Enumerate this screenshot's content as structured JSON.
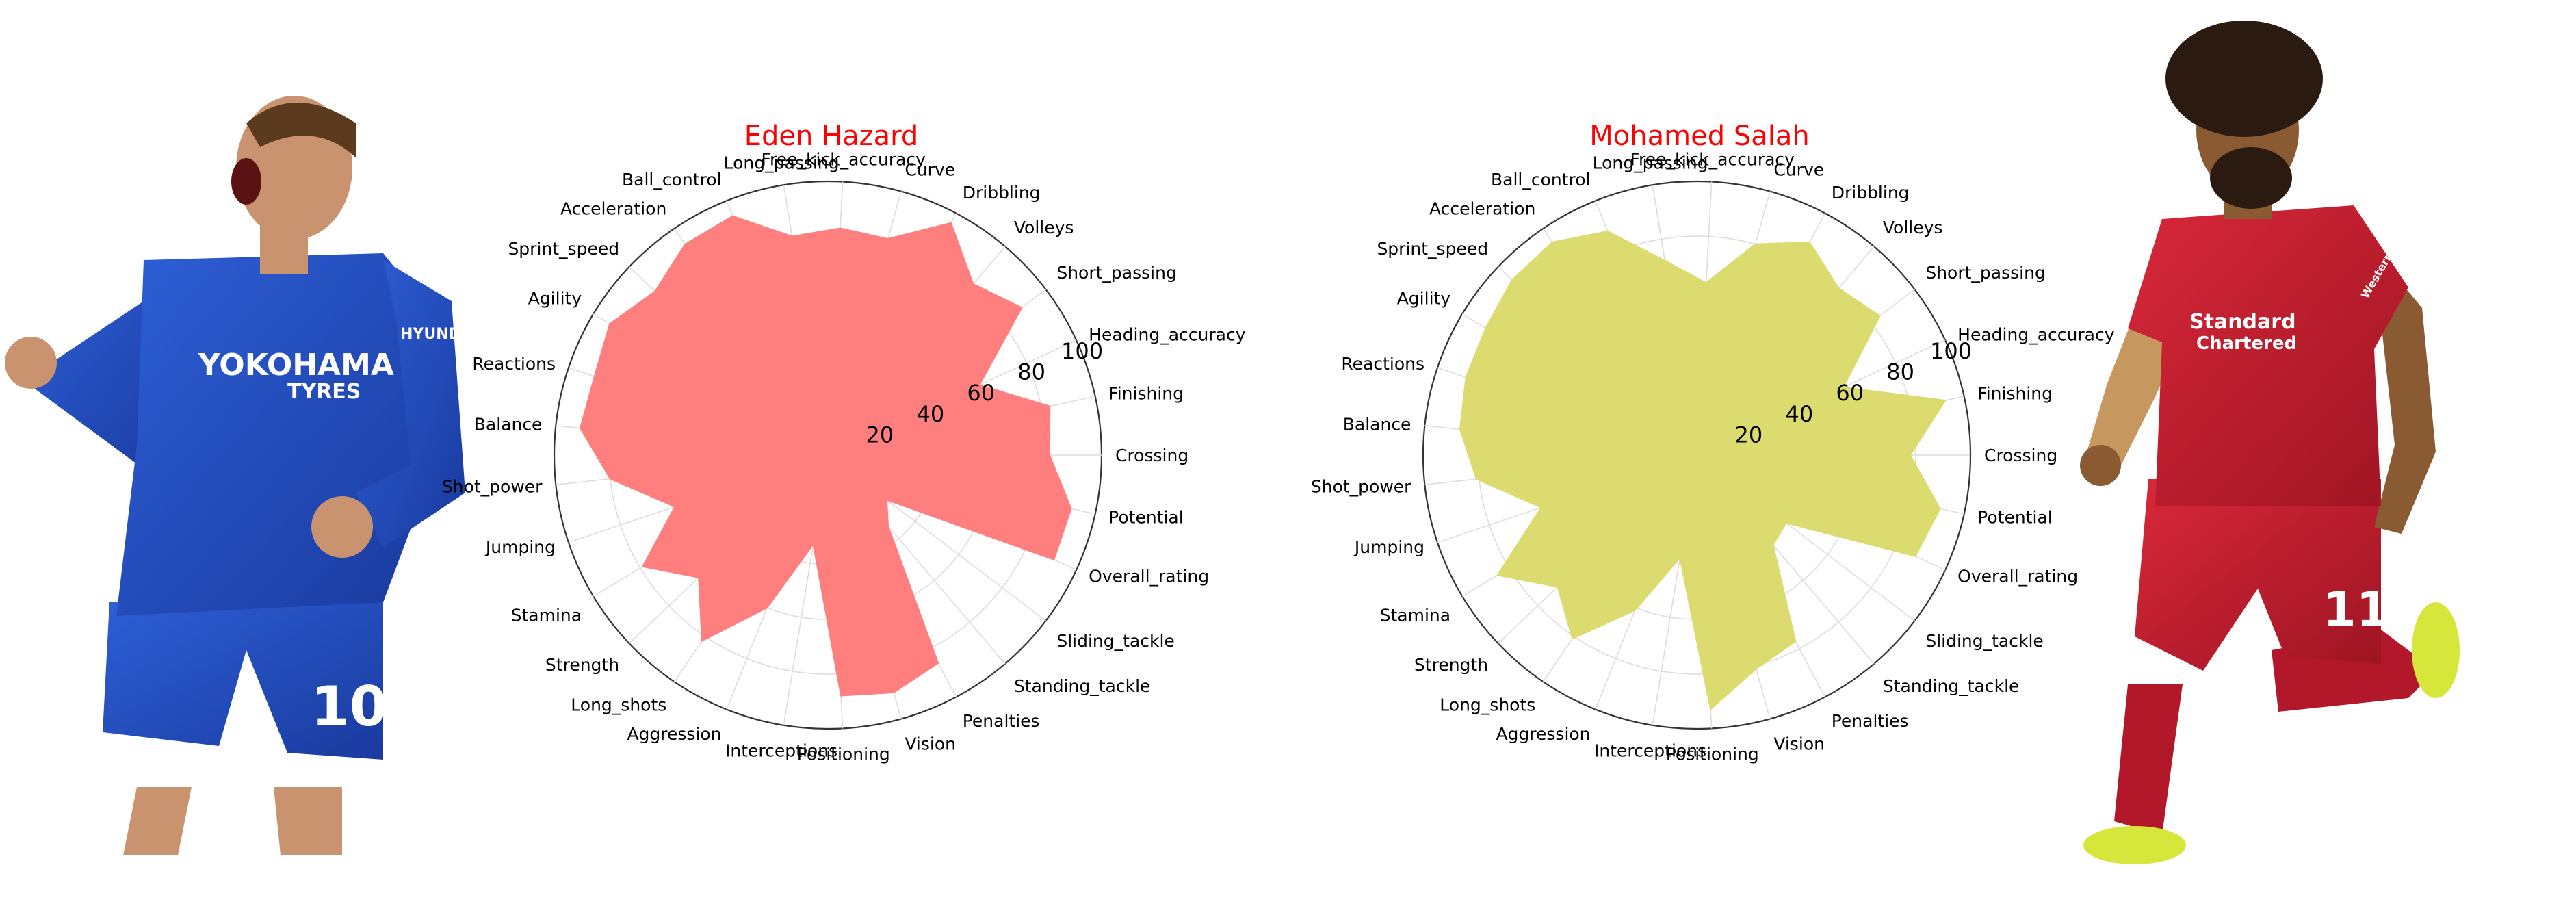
{
  "chart_data": [
    {
      "type": "radar",
      "title": "Eden Hazard",
      "color": "#ff7f7f",
      "title_color": "#ff0000",
      "r_range": [
        0,
        100
      ],
      "r_ticks": [
        "20",
        "40",
        "60",
        "80",
        "100"
      ],
      "grid": true,
      "categories": [
        "Crossing",
        "Finishing",
        "Heading_accuracy",
        "Short_passing",
        "Volleys",
        "Dribbling",
        "Curve",
        "Free_kick_accuracy",
        "Long_passing",
        "Ball_control",
        "Acceleration",
        "Sprint_speed",
        "Agility",
        "Reactions",
        "Balance",
        "Shot_power",
        "Jumping",
        "Stamina",
        "Strength",
        "Long_shots",
        "Aggression",
        "Interceptions",
        "Positioning",
        "Vision",
        "Penalties",
        "Standing_tackle",
        "Sliding_tackle",
        "Overall_rating",
        "Potential"
      ],
      "values": [
        81,
        83,
        61,
        89,
        82,
        96,
        82,
        83,
        81,
        94,
        93,
        87,
        93,
        90,
        91,
        80,
        59,
        79,
        65,
        82,
        60,
        33,
        88,
        90,
        86,
        34,
        27,
        91,
        91
      ]
    },
    {
      "type": "radar",
      "title": "Mohamed Salah",
      "color": "#dbdb6f",
      "title_color": "#ff0000",
      "r_range": [
        0,
        100
      ],
      "r_ticks": [
        "20",
        "40",
        "60",
        "80",
        "100"
      ],
      "grid": true,
      "categories": [
        "Crossing",
        "Finishing",
        "Heading_accuracy",
        "Short_passing",
        "Volleys",
        "Dribbling",
        "Curve",
        "Free_kick_accuracy",
        "Long_passing",
        "Ball_control",
        "Acceleration",
        "Sprint_speed",
        "Agility",
        "Reactions",
        "Balance",
        "Shot_power",
        "Jumping",
        "Stamina",
        "Strength",
        "Long_shots",
        "Aggression",
        "Interceptions",
        "Positioning",
        "Vision",
        "Penalties",
        "Standing_tackle",
        "Sliding_tackle",
        "Overall_rating",
        "Potential"
      ],
      "values": [
        78,
        93,
        59,
        84,
        80,
        88,
        80,
        63,
        72,
        88,
        94,
        93,
        90,
        89,
        87,
        81,
        60,
        85,
        70,
        81,
        61,
        38,
        93,
        81,
        77,
        43,
        41,
        88,
        91
      ]
    }
  ],
  "players": [
    {
      "name": "Eden Hazard",
      "kit": "blue",
      "sponsor": "YOKOHAMA",
      "sponsor2": "TYRES",
      "number": "10",
      "sleeve": "HYUNDAI"
    },
    {
      "name": "Mohamed Salah",
      "kit": "red",
      "sponsor": "Standard",
      "sponsor2": "Chartered",
      "number": "11",
      "sleeve": "Western Union"
    }
  ]
}
